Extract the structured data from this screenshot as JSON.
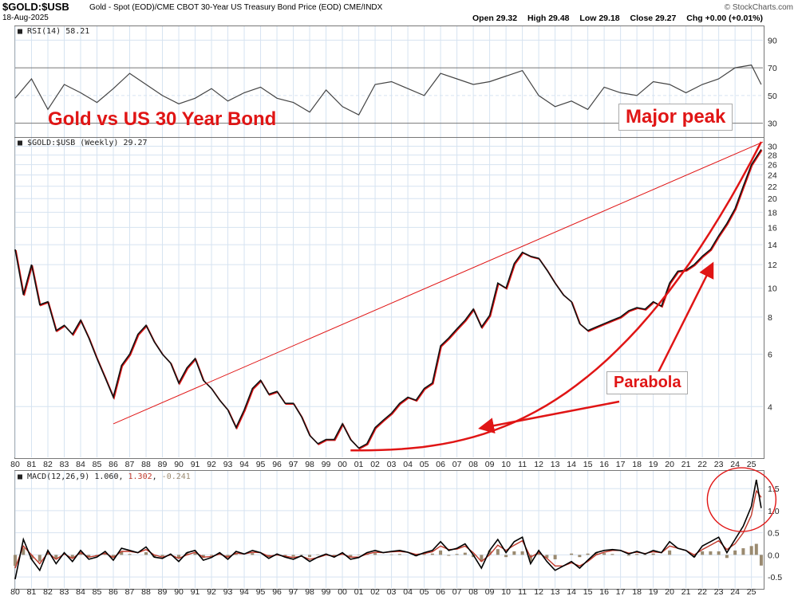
{
  "header": {
    "symbol": "$GOLD:$USB",
    "description": "Gold - Spot (EOD)/CME CBOT 30-Year US Treasury Bond Price (EOD) CME/INDX",
    "date": "18-Aug-2025",
    "brand": "© StockCharts.com",
    "open_label": "Open",
    "open": "29.32",
    "high_label": "High",
    "high": "29.48",
    "low_label": "Low",
    "low": "29.18",
    "close_label": "Close",
    "close": "29.27",
    "chg_label": "Chg",
    "chg": "+0.00 (+0.01%)"
  },
  "annotations": {
    "title": "Gold vs US 30 Year Bond",
    "major_peak": "Major peak",
    "parabola": "Parabola"
  },
  "colors": {
    "accent": "#e01515",
    "grid": "#d6e3f1",
    "price": "#111111",
    "macd_line": "#000000",
    "macd_signal": "#c0392b",
    "macd_hist": "#9a8a70"
  },
  "chart_data": [
    {
      "type": "line",
      "panel": "rsi",
      "label": "RSI(14) 58.21",
      "series_name": "RSI(14)",
      "last_value": 58.21,
      "ylim": [
        20,
        100
      ],
      "y_ticks": [
        90,
        70,
        50,
        30
      ],
      "x_range": [
        1980,
        2025.7
      ],
      "overbought": 70,
      "oversold": 30,
      "midline": 50,
      "x": [
        1980.0,
        1981.0,
        1982.0,
        1983.0,
        1984.0,
        1985.0,
        1986.0,
        1987.0,
        1988.0,
        1989.0,
        1990.0,
        1991.0,
        1992.0,
        1993.0,
        1994.0,
        1995.0,
        1996.0,
        1997.0,
        1998.0,
        1999.0,
        2000.0,
        2001.0,
        2002.0,
        2003.0,
        2004.0,
        2005.0,
        2006.0,
        2007.0,
        2008.0,
        2009.0,
        2010.0,
        2011.0,
        2012.0,
        2013.0,
        2014.0,
        2015.0,
        2016.0,
        2017.0,
        2018.0,
        2019.0,
        2020.0,
        2021.0,
        2022.0,
        2023.0,
        2024.0,
        2025.0,
        2025.6
      ],
      "y": [
        48,
        62,
        40,
        58,
        52,
        45,
        55,
        66,
        58,
        50,
        44,
        48,
        55,
        46,
        52,
        56,
        48,
        45,
        38,
        54,
        42,
        36,
        58,
        60,
        55,
        50,
        66,
        62,
        58,
        60,
        64,
        68,
        50,
        42,
        46,
        40,
        56,
        52,
        50,
        60,
        58,
        52,
        58,
        62,
        70,
        72,
        58
      ]
    },
    {
      "type": "line",
      "panel": "price",
      "label": "$GOLD:$USB (Weekly) 29.27",
      "series_name": "$GOLD:$USB (Weekly)",
      "last_value": 29.27,
      "y_scale": "log",
      "ylim": [
        2.7,
        32
      ],
      "y_ticks": [
        30,
        28,
        26,
        24,
        22,
        20,
        18,
        16,
        14,
        12,
        10,
        8,
        6,
        4
      ],
      "x_range": [
        1980,
        2025.7
      ],
      "x_ticks": [
        "80",
        "81",
        "82",
        "83",
        "84",
        "85",
        "86",
        "87",
        "88",
        "89",
        "90",
        "91",
        "92",
        "93",
        "94",
        "95",
        "96",
        "97",
        "98",
        "99",
        "00",
        "01",
        "02",
        "03",
        "04",
        "05",
        "06",
        "07",
        "08",
        "09",
        "10",
        "11",
        "12",
        "13",
        "14",
        "15",
        "16",
        "17",
        "18",
        "19",
        "20",
        "21",
        "22",
        "23",
        "24",
        "25"
      ],
      "x": [
        1980.0,
        1980.5,
        1981.0,
        1981.5,
        1982.0,
        1982.5,
        1983.0,
        1983.5,
        1984.0,
        1984.5,
        1985.0,
        1985.5,
        1986.0,
        1986.5,
        1987.0,
        1987.5,
        1988.0,
        1988.5,
        1989.0,
        1989.5,
        1990.0,
        1990.5,
        1991.0,
        1991.5,
        1992.0,
        1992.5,
        1993.0,
        1993.5,
        1994.0,
        1994.5,
        1995.0,
        1995.5,
        1996.0,
        1996.5,
        1997.0,
        1997.5,
        1998.0,
        1998.5,
        1999.0,
        1999.5,
        2000.0,
        2000.5,
        2001.0,
        2001.5,
        2002.0,
        2002.5,
        2003.0,
        2003.5,
        2004.0,
        2004.5,
        2005.0,
        2005.5,
        2006.0,
        2006.5,
        2007.0,
        2007.5,
        2008.0,
        2008.5,
        2009.0,
        2009.5,
        2010.0,
        2010.5,
        2011.0,
        2011.5,
        2012.0,
        2012.5,
        2013.0,
        2013.5,
        2014.0,
        2014.5,
        2015.0,
        2015.5,
        2016.0,
        2016.5,
        2017.0,
        2017.5,
        2018.0,
        2018.5,
        2019.0,
        2019.5,
        2020.0,
        2020.5,
        2021.0,
        2021.5,
        2022.0,
        2022.5,
        2023.0,
        2023.5,
        2024.0,
        2024.5,
        2025.0,
        2025.6
      ],
      "y": [
        13.5,
        9.5,
        12.0,
        8.8,
        9.0,
        7.2,
        7.5,
        7.0,
        7.8,
        6.8,
        5.8,
        5.0,
        4.3,
        5.5,
        6.0,
        7.0,
        7.5,
        6.6,
        6.0,
        5.6,
        4.8,
        5.4,
        5.8,
        4.9,
        4.6,
        4.2,
        3.9,
        3.4,
        3.9,
        4.6,
        4.9,
        4.4,
        4.5,
        4.1,
        4.1,
        3.7,
        3.2,
        3.0,
        3.1,
        3.1,
        3.5,
        3.1,
        2.9,
        3.0,
        3.4,
        3.6,
        3.8,
        4.1,
        4.3,
        4.2,
        4.6,
        4.8,
        6.4,
        6.8,
        7.3,
        7.8,
        8.5,
        7.4,
        8.1,
        10.4,
        10.0,
        12.1,
        13.2,
        12.8,
        12.6,
        11.5,
        10.4,
        9.5,
        9.0,
        7.6,
        7.2,
        7.4,
        7.6,
        7.8,
        8.0,
        8.4,
        8.6,
        8.5,
        9.0,
        8.7,
        10.4,
        11.4,
        11.5,
        12.0,
        12.8,
        13.5,
        15.0,
        16.5,
        18.5,
        22.0,
        26.0,
        29.27
      ]
    },
    {
      "type": "line",
      "panel": "macd",
      "label": "MACD(12,26,9)",
      "macd_value": "1.060",
      "signal_value": "1.302",
      "hist_value": "-0.241",
      "ylim": [
        -0.75,
        1.9
      ],
      "y_ticks": [
        1.5,
        1.0,
        0.5,
        0.0,
        -0.5
      ],
      "x_range": [
        1980,
        2025.7
      ],
      "x_ticks": [
        "80",
        "81",
        "82",
        "83",
        "84",
        "85",
        "86",
        "87",
        "88",
        "89",
        "90",
        "91",
        "92",
        "93",
        "94",
        "95",
        "96",
        "97",
        "98",
        "99",
        "00",
        "01",
        "02",
        "03",
        "04",
        "05",
        "06",
        "07",
        "08",
        "09",
        "10",
        "11",
        "12",
        "13",
        "14",
        "15",
        "16",
        "17",
        "18",
        "19",
        "20",
        "21",
        "22",
        "23",
        "24",
        "25"
      ],
      "x": [
        1980.0,
        1980.5,
        1981.0,
        1981.5,
        1982.0,
        1982.5,
        1983.0,
        1983.5,
        1984.0,
        1984.5,
        1985.0,
        1985.5,
        1986.0,
        1986.5,
        1987.0,
        1987.5,
        1988.0,
        1988.5,
        1989.0,
        1989.5,
        1990.0,
        1990.5,
        1991.0,
        1991.5,
        1992.0,
        1992.5,
        1993.0,
        1993.5,
        1994.0,
        1994.5,
        1995.0,
        1995.5,
        1996.0,
        1996.5,
        1997.0,
        1997.5,
        1998.0,
        1998.5,
        1999.0,
        1999.5,
        2000.0,
        2000.5,
        2001.0,
        2001.5,
        2002.0,
        2002.5,
        2003.0,
        2003.5,
        2004.0,
        2004.5,
        2005.0,
        2005.5,
        2006.0,
        2006.5,
        2007.0,
        2007.5,
        2008.0,
        2008.5,
        2009.0,
        2009.5,
        2010.0,
        2010.5,
        2011.0,
        2011.5,
        2012.0,
        2012.5,
        2013.0,
        2013.5,
        2014.0,
        2014.5,
        2015.0,
        2015.5,
        2016.0,
        2016.5,
        2017.0,
        2017.5,
        2018.0,
        2018.5,
        2019.0,
        2019.5,
        2020.0,
        2020.5,
        2021.0,
        2021.5,
        2022.0,
        2022.5,
        2023.0,
        2023.5,
        2024.0,
        2024.5,
        2025.0,
        2025.3,
        2025.6
      ],
      "macd": [
        -0.55,
        0.35,
        -0.1,
        -0.35,
        0.1,
        -0.2,
        0.05,
        -0.15,
        0.1,
        -0.1,
        -0.05,
        0.08,
        -0.12,
        0.15,
        0.1,
        0.05,
        0.18,
        -0.05,
        -0.08,
        0.02,
        -0.15,
        0.05,
        0.1,
        -0.12,
        -0.06,
        0.05,
        -0.1,
        0.08,
        0.02,
        0.1,
        0.05,
        -0.08,
        0.02,
        -0.05,
        -0.1,
        -0.02,
        -0.15,
        -0.05,
        0.02,
        -0.05,
        0.05,
        -0.1,
        -0.06,
        0.05,
        0.1,
        0.05,
        0.08,
        0.1,
        0.06,
        -0.02,
        0.05,
        0.1,
        0.3,
        0.1,
        0.15,
        0.25,
        0.0,
        -0.3,
        0.1,
        0.35,
        0.05,
        0.3,
        0.4,
        -0.2,
        0.1,
        -0.15,
        -0.35,
        -0.25,
        -0.15,
        -0.3,
        -0.12,
        0.05,
        0.1,
        0.12,
        0.1,
        0.02,
        0.08,
        0.02,
        0.1,
        0.05,
        0.3,
        0.15,
        0.1,
        -0.05,
        0.2,
        0.3,
        0.4,
        0.05,
        0.35,
        0.65,
        1.1,
        1.7,
        1.06
      ],
      "signal": [
        -0.3,
        0.2,
        0.0,
        -0.2,
        0.05,
        -0.1,
        0.02,
        -0.08,
        0.05,
        -0.05,
        -0.02,
        0.04,
        -0.06,
        0.08,
        0.08,
        0.05,
        0.12,
        0.0,
        -0.05,
        0.0,
        -0.08,
        0.0,
        0.06,
        -0.05,
        -0.04,
        0.02,
        -0.05,
        0.04,
        0.02,
        0.06,
        0.05,
        -0.03,
        0.0,
        -0.03,
        -0.06,
        -0.03,
        -0.1,
        -0.06,
        0.0,
        -0.03,
        0.02,
        -0.05,
        -0.05,
        0.02,
        0.06,
        0.05,
        0.07,
        0.08,
        0.06,
        0.01,
        0.03,
        0.07,
        0.2,
        0.12,
        0.13,
        0.2,
        0.05,
        -0.15,
        0.0,
        0.22,
        0.1,
        0.22,
        0.32,
        -0.05,
        0.05,
        -0.08,
        -0.25,
        -0.25,
        -0.18,
        -0.25,
        -0.15,
        0.0,
        0.06,
        0.1,
        0.1,
        0.04,
        0.06,
        0.03,
        0.07,
        0.05,
        0.2,
        0.15,
        0.1,
        0.0,
        0.12,
        0.22,
        0.32,
        0.12,
        0.25,
        0.5,
        0.9,
        1.45,
        1.302
      ]
    }
  ]
}
